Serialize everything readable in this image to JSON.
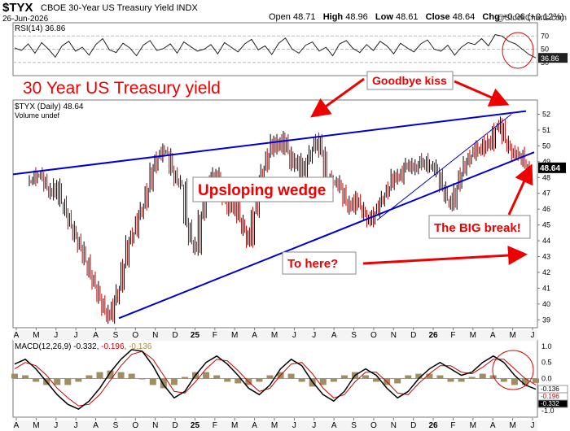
{
  "header": {
    "symbol": "$TYX",
    "description": "CBOE 30-Year US Treasury Yield INDX",
    "date": "26-Jun-2026",
    "open_label": "Open",
    "open": "48.71",
    "high_label": "High",
    "high": "48.96",
    "low_label": "Low",
    "low": "48.61",
    "close_label": "Close",
    "close": "48.64",
    "chg_label": "Chg",
    "chg": "+0.06 (+0.12%)",
    "copyright": "@StockCharts.com"
  },
  "chart_data": [
    {
      "type": "line",
      "panel": "RSI",
      "label": "RSI(14) 36.86",
      "current_value": "36.86",
      "ylim": [
        10,
        90
      ],
      "ticks": [
        "70",
        "50",
        "30"
      ],
      "reference_lines": [
        30,
        70
      ],
      "series": [
        {
          "values": [
            52,
            48,
            58,
            44,
            60,
            50,
            38,
            55,
            62,
            47,
            53,
            41,
            57,
            66,
            49,
            45,
            59,
            52,
            40,
            56,
            63,
            48,
            51,
            58,
            44,
            61,
            54,
            47,
            50,
            57,
            43,
            60,
            53,
            46,
            58,
            65,
            49,
            55,
            42,
            59,
            67,
            50,
            44,
            56,
            61,
            47,
            53,
            40,
            58,
            63,
            51,
            45,
            57,
            48,
            62,
            55,
            43,
            59,
            52,
            46,
            58,
            64,
            50,
            47,
            56,
            41,
            53,
            60,
            57,
            66,
            55,
            72,
            70,
            62,
            58,
            50,
            42,
            36.86
          ]
        }
      ]
    },
    {
      "type": "bar",
      "panel": "price",
      "label": "$TYX (Daily) 48.64",
      "volume_label": "Volume undef",
      "ylim": [
        38.5,
        52.9
      ],
      "ticks": [
        "52",
        "51",
        "50",
        "49",
        "48",
        "47",
        "46",
        "45",
        "44",
        "43",
        "42",
        "41",
        "40",
        "39"
      ],
      "last_value": "48.64",
      "x_ticks": [
        "A",
        "M",
        "J",
        "J",
        "A",
        "S",
        "O",
        "N",
        "D",
        "25",
        "F",
        "M",
        "A",
        "M",
        "J",
        "J",
        "A",
        "S",
        "O",
        "N",
        "D",
        "26",
        "F",
        "M",
        "A",
        "M",
        "J"
      ],
      "series": [
        {
          "name": "$TYX",
          "values": [
            47.8,
            48.3,
            48.1,
            47.4,
            46.9,
            47.6,
            46.5,
            45.8,
            45.0,
            44.2,
            43.6,
            42.8,
            41.9,
            41.2,
            40.3,
            39.6,
            39.1,
            40.2,
            41.0,
            42.6,
            44.0,
            44.5,
            45.6,
            46.2,
            47.4,
            48.6,
            49.3,
            49.8,
            49.6,
            48.4,
            47.8,
            47.6,
            45.2,
            44.0,
            43.4,
            45.6,
            46.9,
            48.0,
            48.4,
            47.6,
            46.6,
            45.9,
            46.5,
            45.4,
            44.6,
            43.9,
            45.8,
            47.8,
            48.6,
            49.6,
            50.4,
            49.8,
            50.6,
            49.7,
            48.7,
            49.2,
            48.2,
            49.1,
            49.8,
            50.5,
            49.6,
            48.1,
            47.6,
            47.9,
            47.3,
            46.5,
            46.0,
            46.8,
            46.2,
            45.6,
            45.2,
            45.8,
            46.4,
            46.9,
            47.5,
            48.2,
            47.9,
            48.6,
            49.0,
            48.5,
            48.8,
            49.2,
            48.6,
            48.9,
            48.3,
            47.4,
            46.7,
            46.2,
            47.4,
            48.4,
            49.0,
            49.4,
            50.0,
            49.6,
            50.4,
            50.0,
            51.1,
            51.5,
            50.4,
            49.8,
            49.4,
            49.6,
            48.9,
            48.64
          ]
        }
      ],
      "annotations": [
        "30 Year US Treasury yield",
        "Goodbye kiss",
        "Upsloping wedge",
        "The BIG break!",
        "To here?"
      ]
    },
    {
      "type": "line",
      "panel": "MACD",
      "label": "MACD(12,26,9)",
      "values_text": [
        "-0.332",
        "-0.196",
        "-0.136"
      ],
      "ylim": [
        -1.2,
        1.2
      ],
      "ticks": [
        "1.0",
        "0.5",
        "0.0",
        "-0.5",
        "-1.0"
      ],
      "current_labels": [
        "-0.136",
        "-0.196",
        "-0.332"
      ],
      "series": [
        {
          "values": [
            0.45,
            0.6,
            0.3,
            -0.1,
            -0.5,
            -0.8,
            -0.95,
            -0.7,
            -0.3,
            0.2,
            0.6,
            0.9,
            0.85,
            0.4,
            -0.2,
            -0.6,
            -0.4,
            0.1,
            0.5,
            0.7,
            0.45,
            0.1,
            -0.3,
            -0.5,
            -0.2,
            0.3,
            0.6,
            0.4,
            -0.1,
            -0.5,
            -0.7,
            -0.4,
            0.1,
            0.3,
            0.1,
            -0.3,
            -0.6,
            -0.4,
            0.0,
            0.3,
            0.5,
            0.3,
            0.1,
            0.2,
            0.5,
            0.7,
            0.5,
            0.1,
            -0.2,
            -0.332
          ]
        },
        {
          "values": [
            0.3,
            0.5,
            0.4,
            0.1,
            -0.3,
            -0.6,
            -0.85,
            -0.8,
            -0.5,
            -0.05,
            0.4,
            0.75,
            0.85,
            0.6,
            0.1,
            -0.4,
            -0.45,
            -0.1,
            0.3,
            0.6,
            0.55,
            0.25,
            -0.1,
            -0.4,
            -0.3,
            0.1,
            0.45,
            0.5,
            0.15,
            -0.3,
            -0.6,
            -0.5,
            -0.1,
            0.2,
            0.2,
            -0.1,
            -0.45,
            -0.5,
            -0.15,
            0.15,
            0.4,
            0.4,
            0.2,
            0.15,
            0.35,
            0.6,
            0.6,
            0.3,
            0.0,
            -0.196
          ]
        }
      ]
    }
  ],
  "x_axis_labels": [
    "A",
    "M",
    "J",
    "J",
    "A",
    "S",
    "O",
    "N",
    "D",
    "25",
    "F",
    "M",
    "A",
    "M",
    "J",
    "J",
    "A",
    "S",
    "O",
    "N",
    "D",
    "26",
    "F",
    "M",
    "A",
    "M",
    "J"
  ]
}
